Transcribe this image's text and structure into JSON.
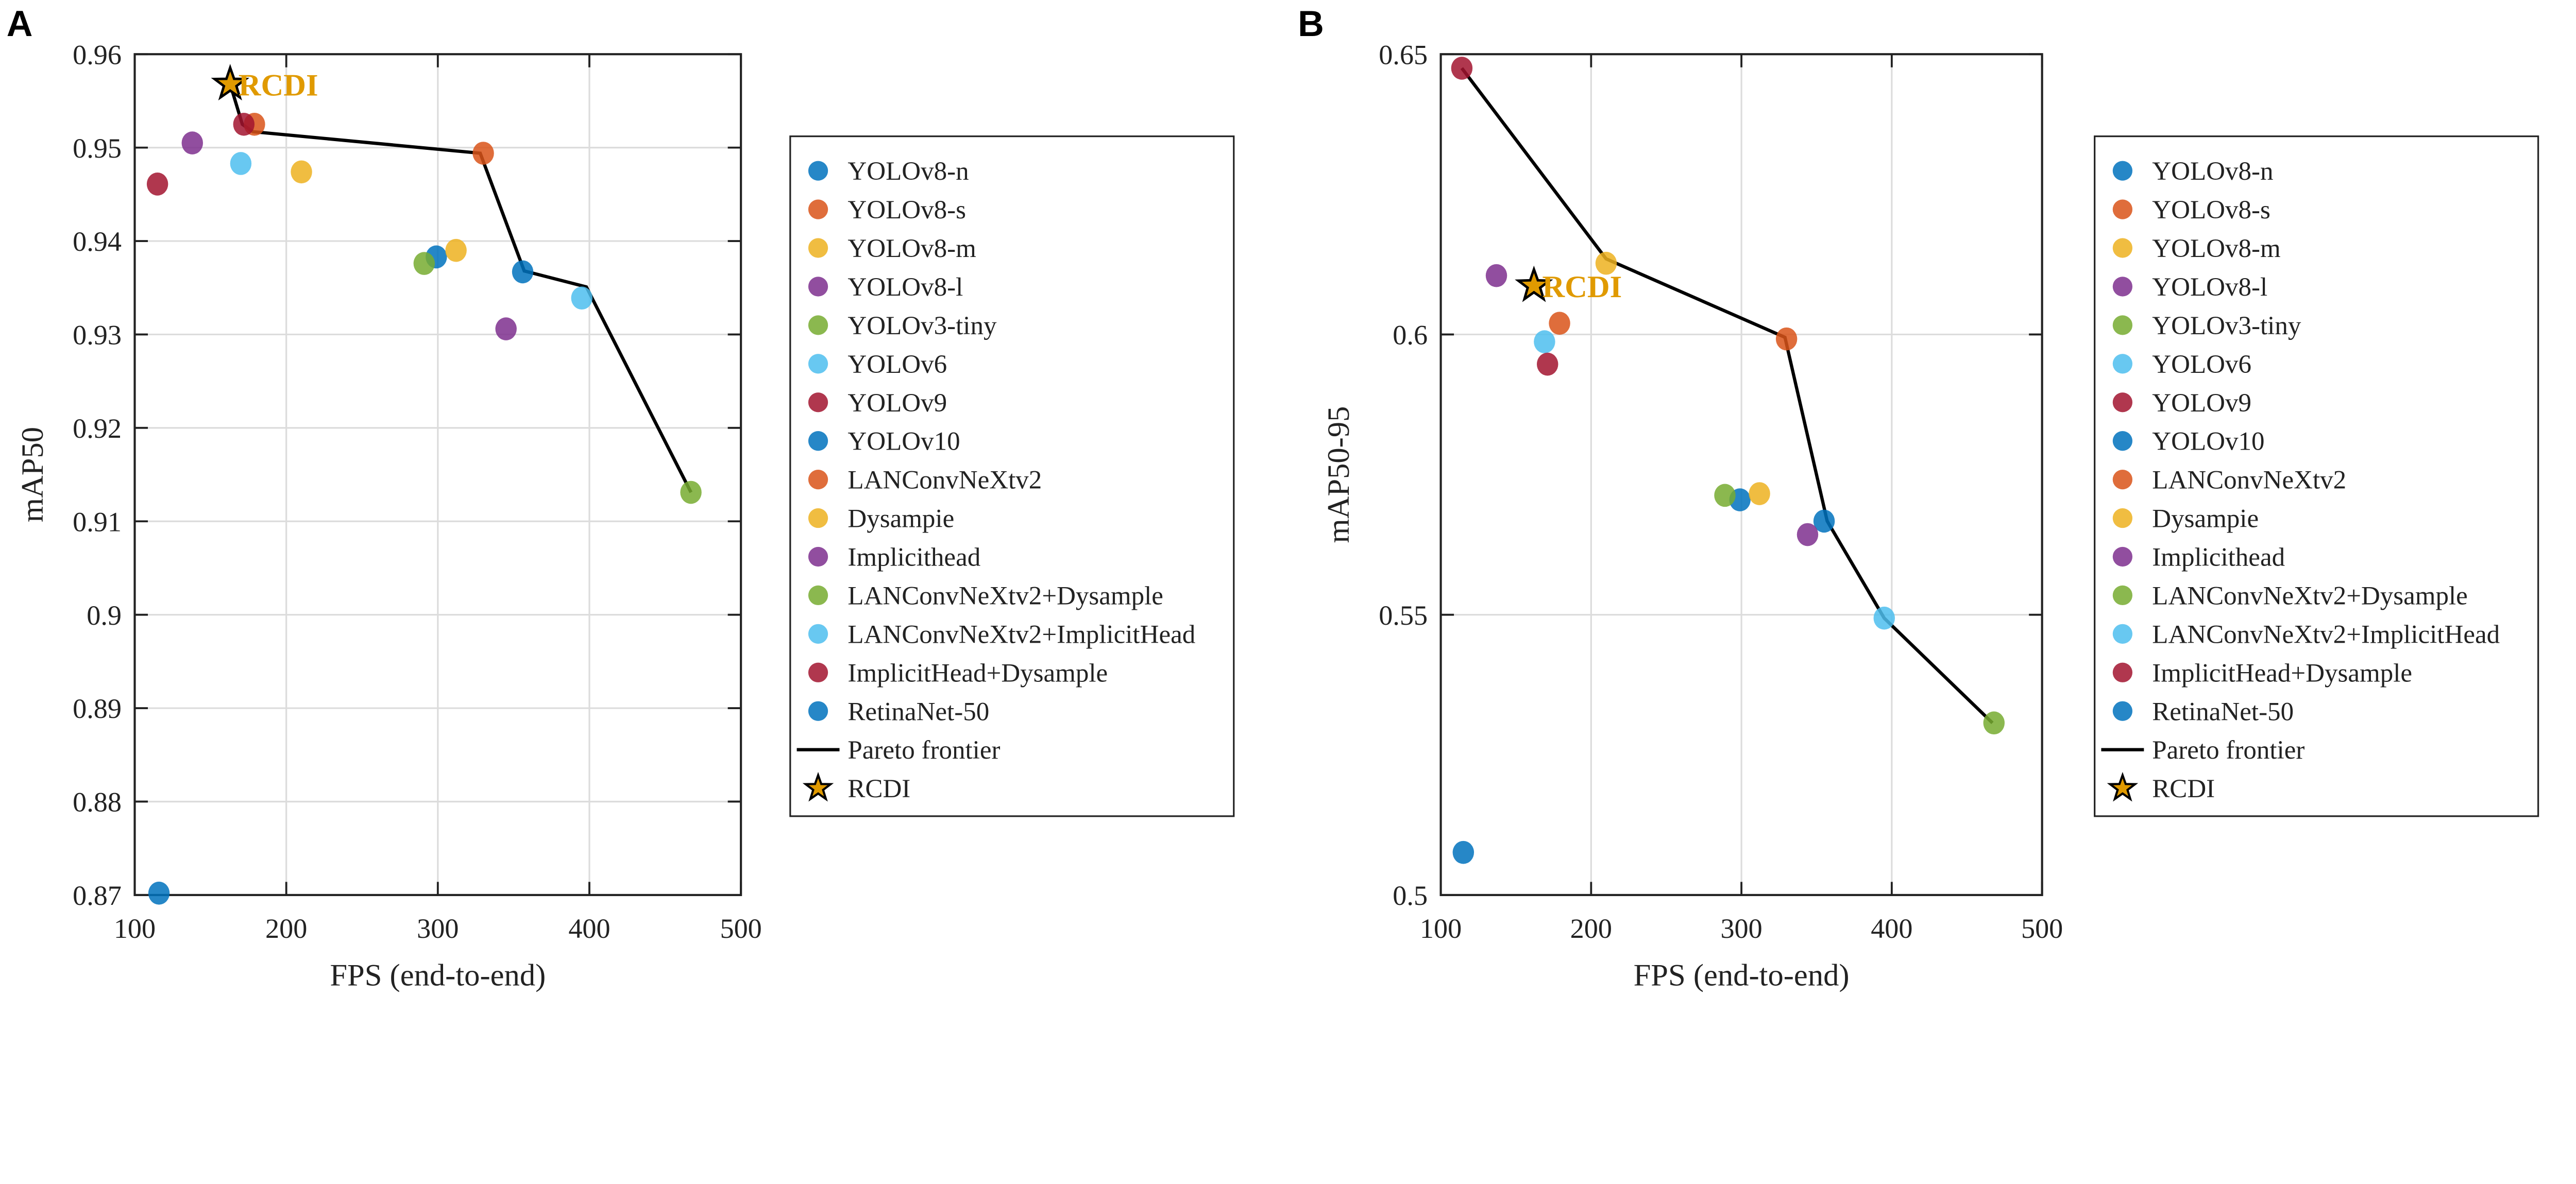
{
  "colors": {
    "blue": "#0072BD",
    "orange": "#D95319",
    "yellow": "#EDB120",
    "purple": "#7E2F8E",
    "green": "#77AC30",
    "cyan": "#4DBEEE",
    "red": "#A2142F",
    "rcdi": "#E09A00",
    "frontier": "#000000"
  },
  "legend": [
    {
      "label": "YOLOv8-n",
      "color": "blue"
    },
    {
      "label": "YOLOv8-s",
      "color": "orange"
    },
    {
      "label": "YOLOv8-m",
      "color": "yellow"
    },
    {
      "label": "YOLOv8-l",
      "color": "purple"
    },
    {
      "label": "YOLOv3-tiny",
      "color": "green"
    },
    {
      "label": "YOLOv6",
      "color": "cyan"
    },
    {
      "label": "YOLOv9",
      "color": "red"
    },
    {
      "label": "YOLOv10",
      "color": "blue"
    },
    {
      "label": "LANConvNeXtv2",
      "color": "orange"
    },
    {
      "label": "Dysampie",
      "color": "yellow"
    },
    {
      "label": "Implicithead",
      "color": "purple"
    },
    {
      "label": "LANConvNeXtv2+Dysample",
      "color": "green"
    },
    {
      "label": "LANConvNeXtv2+ImplicitHead",
      "color": "cyan"
    },
    {
      "label": "ImplicitHead+Dysample",
      "color": "red"
    },
    {
      "label": "RetinaNet-50",
      "color": "blue"
    }
  ],
  "frontier_label": "Pareto frontier",
  "rcdi_label": "RCDI",
  "chart_data": [
    {
      "panel": "A",
      "type": "scatter",
      "xlabel": "FPS (end-to-end)",
      "ylabel": "mAP50",
      "xlim": [
        100,
        500
      ],
      "ylim": [
        0.87,
        0.96
      ],
      "xticks": [
        100,
        200,
        300,
        400,
        500
      ],
      "xtick_labels": [
        "100",
        "200",
        "300",
        "400",
        "500"
      ],
      "yticks": [
        0.87,
        0.88,
        0.89,
        0.9,
        0.91,
        0.92,
        0.93,
        0.94,
        0.95,
        0.96
      ],
      "ytick_labels": [
        "0.87",
        "0.88",
        "0.89",
        "0.9",
        "0.91",
        "0.92",
        "0.93",
        "0.94",
        "0.95",
        "0.96"
      ],
      "grid": true,
      "legend_placement": "outside-right",
      "points": [
        {
          "name": "YOLOv8-n",
          "x": 356,
          "y": 0.9367
        },
        {
          "name": "YOLOv8-s",
          "x": 330,
          "y": 0.9494
        },
        {
          "name": "YOLOv8-m",
          "x": 210,
          "y": 0.9474
        },
        {
          "name": "YOLOv8-l",
          "x": 138,
          "y": 0.9505
        },
        {
          "name": "YOLOv3-tiny",
          "x": 467,
          "y": 0.9131
        },
        {
          "name": "YOLOv6",
          "x": 395,
          "y": 0.9339
        },
        {
          "name": "YOLOv9",
          "x": 115,
          "y": 0.9461
        },
        {
          "name": "YOLOv10",
          "x": 299,
          "y": 0.9383
        },
        {
          "name": "LANConvNeXtv2",
          "x": 179,
          "y": 0.9525
        },
        {
          "name": "Dysampie",
          "x": 312,
          "y": 0.939
        },
        {
          "name": "Implicithead",
          "x": 345,
          "y": 0.9306
        },
        {
          "name": "LANConvNeXtv2+Dysample",
          "x": 291,
          "y": 0.9376
        },
        {
          "name": "LANConvNeXtv2+ImplicitHead",
          "x": 170,
          "y": 0.9483
        },
        {
          "name": "ImplicitHead+Dysample",
          "x": 172,
          "y": 0.9525
        },
        {
          "name": "RetinaNet-50",
          "x": 116,
          "y": 0.8702
        }
      ],
      "rcdi": {
        "x": 163,
        "y": 0.9568
      },
      "frontier": [
        [
          163,
          0.9568
        ],
        [
          171,
          0.9525
        ],
        [
          178,
          0.9517
        ],
        [
          328,
          0.9494
        ],
        [
          357,
          0.9368
        ],
        [
          398,
          0.9351
        ],
        [
          467,
          0.9131
        ]
      ]
    },
    {
      "panel": "B",
      "type": "scatter",
      "xlabel": "FPS (end-to-end)",
      "ylabel": "mAP50-95",
      "xlim": [
        100,
        500
      ],
      "ylim": [
        0.5,
        0.65
      ],
      "xticks": [
        100,
        200,
        300,
        400,
        500
      ],
      "xtick_labels": [
        "100",
        "200",
        "300",
        "400",
        "500"
      ],
      "yticks": [
        0.5,
        0.55,
        0.6,
        0.65
      ],
      "ytick_labels": [
        "0.5",
        "0.55",
        "0.6",
        "0.65"
      ],
      "grid": true,
      "legend_placement": "outside-right",
      "points": [
        {
          "name": "YOLOv8-n",
          "x": 355,
          "y": 0.5667
        },
        {
          "name": "YOLOv8-s",
          "x": 330,
          "y": 0.5992
        },
        {
          "name": "YOLOv8-m",
          "x": 210,
          "y": 0.6127
        },
        {
          "name": "YOLOv8-l",
          "x": 137,
          "y": 0.6105
        },
        {
          "name": "YOLOv3-tiny",
          "x": 468,
          "y": 0.5307
        },
        {
          "name": "YOLOv6",
          "x": 395,
          "y": 0.5494
        },
        {
          "name": "YOLOv9",
          "x": 114,
          "y": 0.6475
        },
        {
          "name": "YOLOv10",
          "x": 299,
          "y": 0.5705
        },
        {
          "name": "LANConvNeXtv2",
          "x": 179,
          "y": 0.602
        },
        {
          "name": "Dysampie",
          "x": 312,
          "y": 0.5716
        },
        {
          "name": "Implicithead",
          "x": 344,
          "y": 0.5643
        },
        {
          "name": "LANConvNeXtv2+Dysample",
          "x": 289,
          "y": 0.5713
        },
        {
          "name": "LANConvNeXtv2+ImplicitHead",
          "x": 169,
          "y": 0.5987
        },
        {
          "name": "ImplicitHead+Dysample",
          "x": 171,
          "y": 0.5947
        },
        {
          "name": "RetinaNet-50",
          "x": 115,
          "y": 0.5076
        }
      ],
      "rcdi": {
        "x": 162,
        "y": 0.6087
      },
      "frontier": [
        [
          114,
          0.6475
        ],
        [
          210,
          0.6135
        ],
        [
          329,
          0.5995
        ],
        [
          357,
          0.5667
        ],
        [
          395,
          0.5494
        ],
        [
          467,
          0.5307
        ]
      ]
    }
  ]
}
